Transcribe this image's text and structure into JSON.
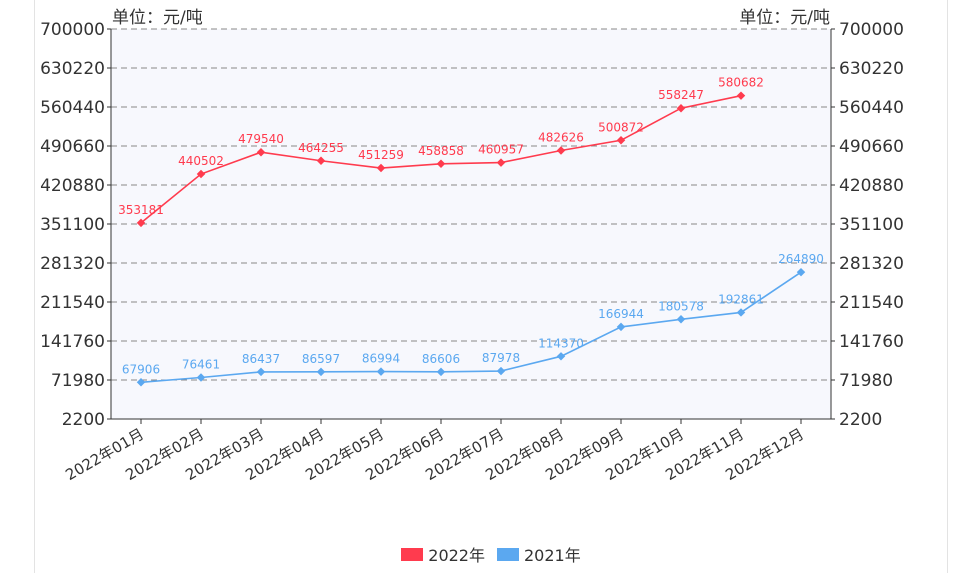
{
  "chart_data": {
    "type": "line",
    "unit_label_left": "单位：元/吨",
    "unit_label_right": "单位：元/吨",
    "categories": [
      "2022年01月",
      "2022年02月",
      "2022年03月",
      "2022年04月",
      "2022年05月",
      "2022年06月",
      "2022年07月",
      "2022年08月",
      "2022年09月",
      "2022年10月",
      "2022年11月",
      "2022年12月"
    ],
    "y_ticks": [
      2200,
      71980,
      141760,
      211540,
      281320,
      351100,
      420880,
      490660,
      560440,
      630220,
      700000
    ],
    "y_tick_labels_left": [
      "2200",
      "71980",
      "141760",
      "211540",
      "281320",
      "351100",
      "420880",
      "490660",
      "560440",
      "630220",
      "700000"
    ],
    "y_tick_labels_right": [
      "2200",
      "71980",
      "141760",
      "211540",
      "281320",
      "351100",
      "420880",
      "490660",
      "560440",
      "630220",
      "700000"
    ],
    "ylim": [
      2200,
      700000
    ],
    "grid": true,
    "legend_position": "bottom-center",
    "series": [
      {
        "name": "2022年",
        "color": "#ff3b4e",
        "values": [
          353181,
          440502,
          479540,
          464255,
          451259,
          458858,
          460957,
          482626,
          500872,
          558247,
          580682,
          null
        ]
      },
      {
        "name": "2021年",
        "color": "#5ba8f0",
        "values": [
          67906,
          76461,
          86437,
          86597,
          86994,
          86606,
          87978,
          114370,
          166944,
          180578,
          192861,
          264890
        ]
      }
    ]
  }
}
